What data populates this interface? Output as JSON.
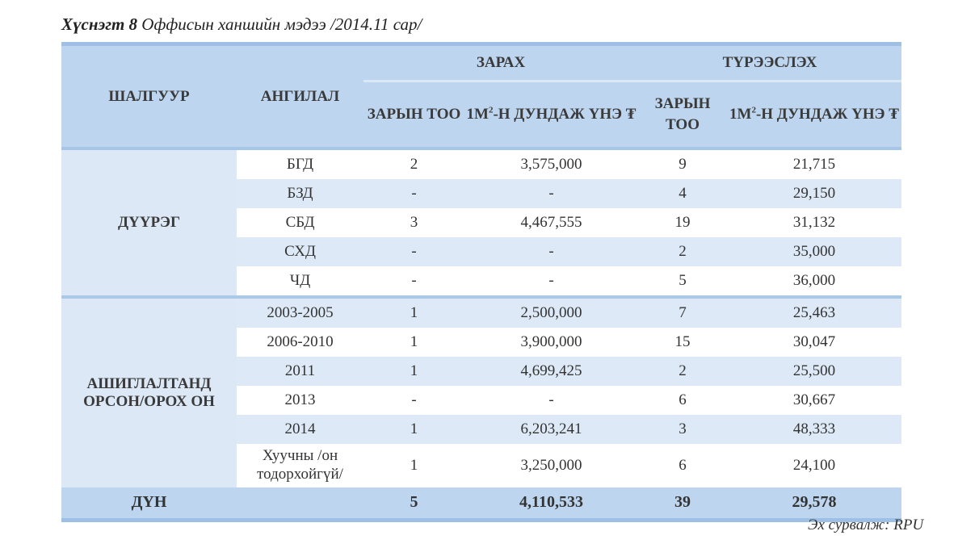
{
  "title": {
    "label": "Хүснэгт 8",
    "text": " Оффисын ханшийн мэдээ /2014.11 сар/"
  },
  "headers": {
    "criterion": "ШАЛГУУР",
    "category": "АНГИЛАЛ",
    "sale": "ЗАРАХ",
    "rent": "ТҮРЭЭСЛЭХ",
    "count": "ЗАРЫН ТОО",
    "price_pre": "1М",
    "price_sup": "2",
    "price_post": "-Н ДУНДАЖ ҮНЭ ₮"
  },
  "groups": [
    {
      "name": "ДҮҮРЭГ",
      "rows": [
        [
          "БГД",
          "2",
          "3,575,000",
          "9",
          "21,715"
        ],
        [
          "БЗД",
          "-",
          "-",
          "4",
          "29,150"
        ],
        [
          "СБД",
          "3",
          "4,467,555",
          "19",
          "31,132"
        ],
        [
          "СХД",
          "-",
          "-",
          "2",
          "35,000"
        ],
        [
          "ЧД",
          "-",
          "-",
          "5",
          "36,000"
        ]
      ]
    },
    {
      "name": "АШИГЛАЛТАНД ОРСОН/ОРОХ ОН",
      "rows": [
        [
          "2003-2005",
          "1",
          "2,500,000",
          "7",
          "25,463"
        ],
        [
          "2006-2010",
          "1",
          "3,900,000",
          "15",
          "30,047"
        ],
        [
          "2011",
          "1",
          "4,699,425",
          "2",
          "25,500"
        ],
        [
          "2013",
          "-",
          "-",
          "6",
          "30,667"
        ],
        [
          "2014",
          "1",
          "6,203,241",
          "3",
          "48,333"
        ],
        [
          "Хуучны /он тодорхойгүй/",
          "1",
          "3,250,000",
          "6",
          "24,100"
        ]
      ]
    }
  ],
  "total": {
    "label": "ДҮН",
    "sale_count": "5",
    "sale_price": "4,110,533",
    "rent_count": "39",
    "rent_price": "29,578"
  },
  "source": "Эх сурвалж: RPU"
}
